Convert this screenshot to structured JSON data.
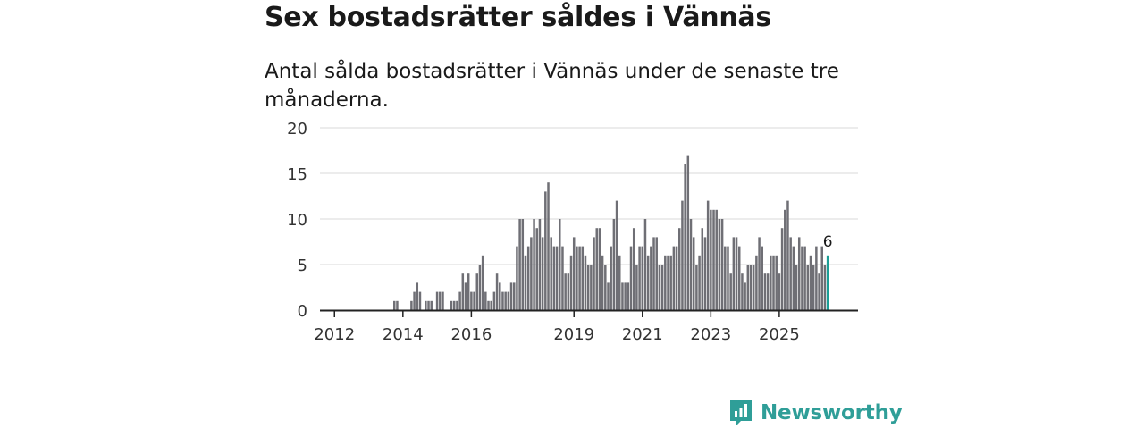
{
  "title": "Sex bostadsrätter såldes i Vännäs",
  "subtitle": "Antal sålda bostadsrätter i Vännäs under de senaste tre månaderna.",
  "brand": {
    "name": "Newsworthy",
    "color": "#2f9e98"
  },
  "chart_data": {
    "type": "bar",
    "title": "Antal sålda bostadsrätter i Vännäs",
    "xlabel": "",
    "ylabel": "",
    "ylim": [
      0,
      20
    ],
    "yticks": [
      "0",
      "5",
      "10",
      "15",
      "20"
    ],
    "xticks": [
      {
        "label": "2012",
        "index": 4
      },
      {
        "label": "2014",
        "index": 28
      },
      {
        "label": "2016",
        "index": 52
      },
      {
        "label": "2019",
        "index": 88
      },
      {
        "label": "2021",
        "index": 112
      },
      {
        "label": "2023",
        "index": 136
      },
      {
        "label": "2025",
        "index": 160
      }
    ],
    "bar_color": "#6f6f75",
    "highlight_color": "#1b9e96",
    "highlight_label": "6",
    "values": [
      0,
      0,
      0,
      0,
      0,
      0,
      0,
      0,
      0,
      0,
      0,
      0,
      0,
      0,
      0,
      0,
      0,
      0,
      0,
      0,
      0,
      0,
      0,
      0,
      0,
      1,
      1,
      0,
      0,
      0,
      0,
      1,
      2,
      3,
      2,
      0,
      1,
      1,
      1,
      0,
      2,
      2,
      2,
      0,
      0,
      1,
      1,
      1,
      2,
      4,
      3,
      4,
      2,
      2,
      4,
      5,
      6,
      2,
      1,
      1,
      2,
      4,
      3,
      2,
      2,
      2,
      3,
      3,
      7,
      10,
      10,
      6,
      7,
      8,
      10,
      9,
      10,
      8,
      13,
      14,
      8,
      7,
      7,
      10,
      7,
      4,
      4,
      6,
      8,
      7,
      7,
      7,
      6,
      5,
      5,
      8,
      9,
      9,
      6,
      5,
      3,
      7,
      10,
      12,
      6,
      3,
      3,
      3,
      7,
      9,
      5,
      7,
      7,
      10,
      6,
      7,
      8,
      8,
      5,
      5,
      6,
      6,
      6,
      7,
      7,
      9,
      12,
      16,
      17,
      10,
      8,
      5,
      6,
      9,
      8,
      12,
      11,
      11,
      11,
      10,
      10,
      7,
      7,
      4,
      8,
      8,
      7,
      4,
      3,
      5,
      5,
      5,
      6,
      8,
      7,
      4,
      4,
      6,
      6,
      6,
      4,
      9,
      11,
      12,
      8,
      7,
      5,
      8,
      7,
      7,
      5,
      6,
      5,
      7,
      4,
      7,
      5,
      6
    ]
  }
}
